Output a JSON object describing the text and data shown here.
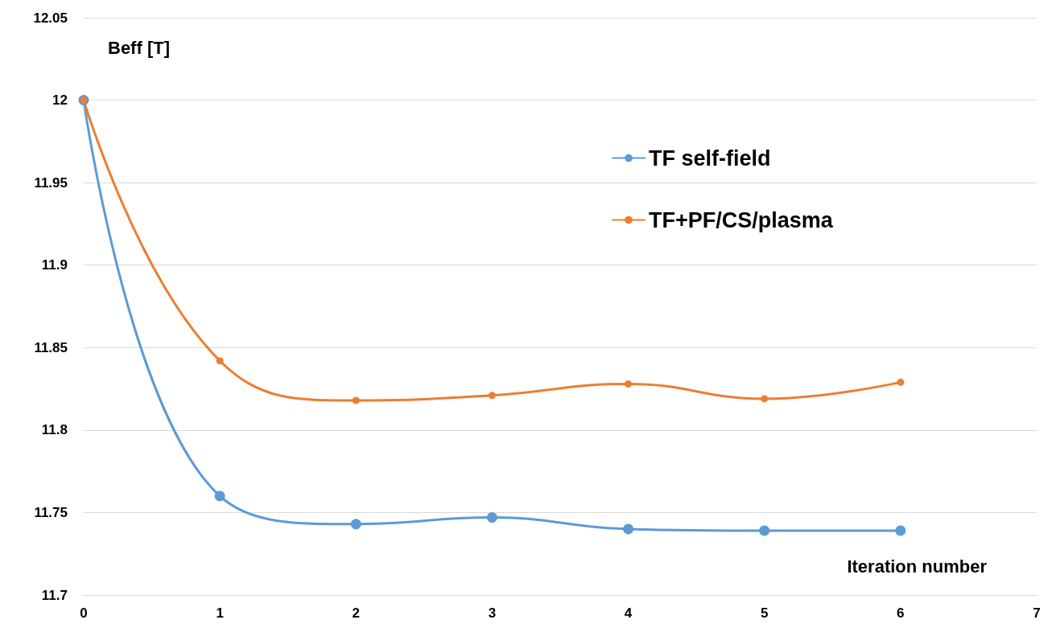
{
  "chart_data": {
    "type": "line",
    "xlabel": "Iteration number",
    "ylabel": "Beff [T]",
    "x": [
      0,
      1,
      2,
      3,
      4,
      5,
      6
    ],
    "series": [
      {
        "name": "TF self-field",
        "color": "#5b9bd5",
        "values": [
          12.0,
          11.76,
          11.743,
          11.747,
          11.74,
          11.739,
          11.739
        ]
      },
      {
        "name": "TF+PF/CS/plasma",
        "color": "#ed7d31",
        "values": [
          12.0,
          11.842,
          11.818,
          11.821,
          11.828,
          11.819,
          11.829
        ]
      }
    ],
    "xlim": [
      0,
      7
    ],
    "xticks": [
      0,
      1,
      2,
      3,
      4,
      5,
      6,
      7
    ],
    "ylim": [
      11.7,
      12.05
    ],
    "yticks": [
      11.7,
      11.75,
      11.8,
      11.85,
      11.9,
      11.95,
      12,
      12.05
    ],
    "grid": "y",
    "legend": "top right",
    "marker": "circle",
    "line_style": "solid"
  }
}
